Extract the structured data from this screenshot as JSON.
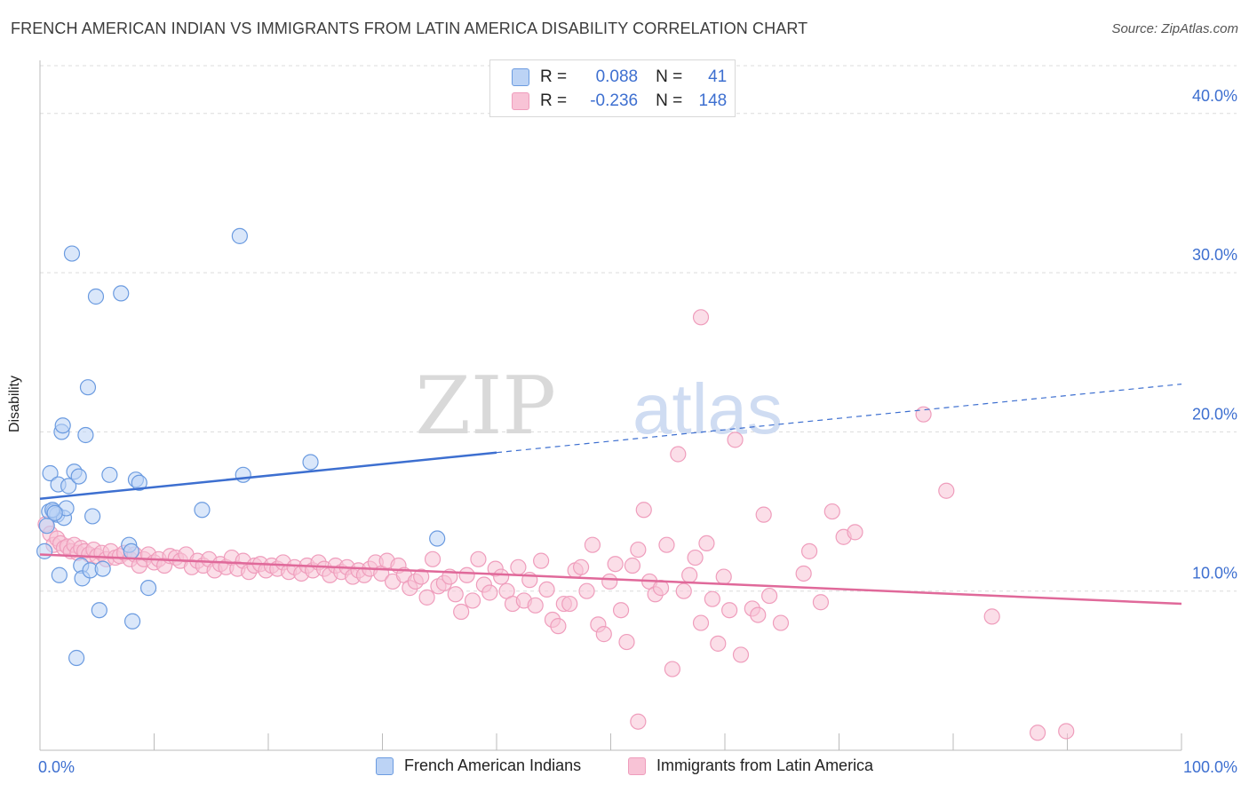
{
  "title": "FRENCH AMERICAN INDIAN VS IMMIGRANTS FROM LATIN AMERICA DISABILITY CORRELATION CHART",
  "source": "Source: ZipAtlas.com",
  "watermark": {
    "zip": "ZIP",
    "atlas": "atlas"
  },
  "legend": {
    "r_label": "R =",
    "n_label": "N =",
    "series1": {
      "r": "0.088",
      "n": "41"
    },
    "series2": {
      "r": "-0.236",
      "n": "148"
    }
  },
  "colors": {
    "blue": "#3d6fd0",
    "blue_fill": "#bcd3f5",
    "blue_stroke": "#6b9be0",
    "pink": "#e0699a",
    "pink_fill": "#f8c3d6",
    "pink_stroke": "#ef9dbc",
    "grid": "#dcdcdc",
    "axis": "#bbbbbb"
  },
  "chart_data": {
    "type": "scatter",
    "xlabel": "",
    "ylabel": "Disability",
    "xlim": [
      0,
      100
    ],
    "ylim": [
      0,
      43
    ],
    "x_tick_labels": [
      "0.0%",
      "100.0%"
    ],
    "y_ticks": [
      10,
      20,
      30,
      40
    ],
    "y_tick_labels": [
      "10.0%",
      "20.0%",
      "30.0%",
      "40.0%"
    ],
    "series": [
      {
        "name": "French American Indians",
        "color": "#3d6fd0",
        "trend": {
          "x0": 0,
          "y0": 15.8,
          "x1": 40,
          "y1": 18.7,
          "dash_x1": 100,
          "dash_y1": 23.0
        },
        "points": [
          [
            0.8,
            15.0
          ],
          [
            0.9,
            17.4
          ],
          [
            1.2,
            15.0
          ],
          [
            1.5,
            14.8
          ],
          [
            1.6,
            16.7
          ],
          [
            1.7,
            11.0
          ],
          [
            1.9,
            20.0
          ],
          [
            2.0,
            20.4
          ],
          [
            2.1,
            14.6
          ],
          [
            2.3,
            15.2
          ],
          [
            2.5,
            16.6
          ],
          [
            2.8,
            31.2
          ],
          [
            3.0,
            17.5
          ],
          [
            3.2,
            5.8
          ],
          [
            3.4,
            17.2
          ],
          [
            3.6,
            11.6
          ],
          [
            3.7,
            10.8
          ],
          [
            4.0,
            19.8
          ],
          [
            4.2,
            22.8
          ],
          [
            4.4,
            11.3
          ],
          [
            4.6,
            14.7
          ],
          [
            4.9,
            28.5
          ],
          [
            5.2,
            8.8
          ],
          [
            5.5,
            11.4
          ],
          [
            6.1,
            17.3
          ],
          [
            7.1,
            28.7
          ],
          [
            7.8,
            12.9
          ],
          [
            8.0,
            12.5
          ],
          [
            8.1,
            8.1
          ],
          [
            8.4,
            17.0
          ],
          [
            8.7,
            16.8
          ],
          [
            9.5,
            10.2
          ],
          [
            14.2,
            15.1
          ],
          [
            17.5,
            32.3
          ],
          [
            17.8,
            17.3
          ],
          [
            23.7,
            18.1
          ],
          [
            34.8,
            13.3
          ],
          [
            0.6,
            14.1
          ],
          [
            1.1,
            15.1
          ],
          [
            1.3,
            14.9
          ],
          [
            0.4,
            12.5
          ]
        ]
      },
      {
        "name": "Immigrants from Latin America",
        "color": "#e0699a",
        "trend": {
          "x0": 0,
          "y0": 12.3,
          "x1": 100,
          "y1": 9.2
        },
        "points": [
          [
            0.5,
            14.2
          ],
          [
            0.9,
            13.6
          ],
          [
            1.2,
            12.9
          ],
          [
            1.5,
            13.3
          ],
          [
            1.8,
            13.0
          ],
          [
            2.1,
            12.7
          ],
          [
            2.4,
            12.8
          ],
          [
            2.7,
            12.5
          ],
          [
            3.0,
            12.9
          ],
          [
            3.3,
            12.4
          ],
          [
            3.6,
            12.7
          ],
          [
            3.9,
            12.5
          ],
          [
            4.3,
            12.3
          ],
          [
            4.7,
            12.6
          ],
          [
            5.0,
            12.2
          ],
          [
            5.4,
            12.4
          ],
          [
            5.8,
            12.0
          ],
          [
            6.2,
            12.5
          ],
          [
            6.6,
            12.1
          ],
          [
            7.0,
            12.2
          ],
          [
            7.4,
            12.4
          ],
          [
            7.9,
            12.0
          ],
          [
            8.3,
            12.3
          ],
          [
            8.7,
            11.6
          ],
          [
            9.1,
            12.0
          ],
          [
            9.5,
            12.3
          ],
          [
            10.0,
            11.8
          ],
          [
            10.4,
            12.0
          ],
          [
            10.9,
            11.6
          ],
          [
            11.4,
            12.2
          ],
          [
            11.9,
            12.1
          ],
          [
            12.3,
            11.9
          ],
          [
            12.8,
            12.3
          ],
          [
            13.3,
            11.5
          ],
          [
            13.8,
            11.9
          ],
          [
            14.3,
            11.6
          ],
          [
            14.8,
            12.0
          ],
          [
            15.3,
            11.3
          ],
          [
            15.8,
            11.7
          ],
          [
            16.3,
            11.5
          ],
          [
            16.8,
            12.1
          ],
          [
            17.3,
            11.4
          ],
          [
            17.8,
            11.9
          ],
          [
            18.3,
            11.2
          ],
          [
            18.8,
            11.6
          ],
          [
            19.3,
            11.7
          ],
          [
            19.8,
            11.3
          ],
          [
            20.3,
            11.6
          ],
          [
            20.8,
            11.4
          ],
          [
            21.3,
            11.8
          ],
          [
            21.8,
            11.2
          ],
          [
            22.3,
            11.5
          ],
          [
            22.9,
            11.1
          ],
          [
            23.4,
            11.6
          ],
          [
            23.9,
            11.3
          ],
          [
            24.4,
            11.8
          ],
          [
            24.9,
            11.4
          ],
          [
            25.4,
            11.0
          ],
          [
            25.9,
            11.6
          ],
          [
            26.4,
            11.2
          ],
          [
            26.9,
            11.5
          ],
          [
            27.4,
            10.9
          ],
          [
            27.9,
            11.3
          ],
          [
            28.4,
            11.0
          ],
          [
            28.9,
            11.4
          ],
          [
            29.4,
            11.8
          ],
          [
            29.9,
            11.1
          ],
          [
            30.4,
            11.9
          ],
          [
            30.9,
            10.6
          ],
          [
            31.4,
            11.6
          ],
          [
            31.9,
            11.0
          ],
          [
            32.4,
            10.2
          ],
          [
            32.9,
            10.6
          ],
          [
            33.4,
            10.9
          ],
          [
            33.9,
            9.6
          ],
          [
            34.4,
            12.0
          ],
          [
            34.9,
            10.3
          ],
          [
            35.4,
            10.5
          ],
          [
            35.9,
            10.9
          ],
          [
            36.4,
            9.8
          ],
          [
            36.9,
            8.7
          ],
          [
            37.4,
            11.0
          ],
          [
            37.9,
            9.4
          ],
          [
            38.4,
            12.0
          ],
          [
            38.9,
            10.4
          ],
          [
            39.4,
            9.9
          ],
          [
            39.9,
            11.4
          ],
          [
            40.4,
            10.9
          ],
          [
            40.9,
            10.0
          ],
          [
            41.4,
            9.2
          ],
          [
            41.9,
            11.5
          ],
          [
            42.4,
            9.4
          ],
          [
            42.9,
            10.7
          ],
          [
            43.4,
            9.1
          ],
          [
            43.9,
            11.9
          ],
          [
            44.4,
            10.1
          ],
          [
            44.9,
            8.2
          ],
          [
            45.4,
            7.8
          ],
          [
            45.9,
            9.2
          ],
          [
            46.4,
            9.2
          ],
          [
            46.9,
            11.3
          ],
          [
            47.4,
            11.5
          ],
          [
            47.9,
            10.0
          ],
          [
            48.4,
            12.9
          ],
          [
            48.9,
            7.9
          ],
          [
            49.4,
            7.3
          ],
          [
            49.9,
            10.6
          ],
          [
            50.4,
            11.7
          ],
          [
            50.9,
            8.8
          ],
          [
            51.4,
            6.8
          ],
          [
            51.9,
            11.6
          ],
          [
            52.4,
            12.6
          ],
          [
            52.9,
            15.1
          ],
          [
            53.4,
            10.6
          ],
          [
            53.9,
            9.8
          ],
          [
            54.4,
            10.2
          ],
          [
            54.9,
            12.9
          ],
          [
            55.4,
            5.1
          ],
          [
            55.9,
            18.6
          ],
          [
            56.4,
            10.0
          ],
          [
            56.9,
            11.0
          ],
          [
            57.4,
            12.1
          ],
          [
            57.9,
            8.0
          ],
          [
            58.4,
            13.0
          ],
          [
            58.9,
            9.5
          ],
          [
            59.4,
            6.7
          ],
          [
            59.9,
            10.9
          ],
          [
            60.4,
            8.8
          ],
          [
            60.9,
            19.5
          ],
          [
            61.4,
            6.0
          ],
          [
            62.4,
            8.9
          ],
          [
            62.9,
            8.5
          ],
          [
            63.4,
            14.8
          ],
          [
            63.9,
            9.7
          ],
          [
            64.9,
            8.0
          ],
          [
            66.9,
            11.1
          ],
          [
            67.4,
            12.5
          ],
          [
            68.4,
            9.3
          ],
          [
            69.4,
            15.0
          ],
          [
            70.4,
            13.4
          ],
          [
            71.4,
            13.7
          ],
          [
            77.4,
            21.1
          ],
          [
            79.4,
            16.3
          ],
          [
            83.4,
            8.4
          ],
          [
            89.9,
            1.2
          ],
          [
            87.4,
            1.1
          ],
          [
            57.9,
            27.2
          ],
          [
            52.4,
            1.8
          ]
        ]
      }
    ]
  },
  "bottom_legend": {
    "series1_label": "French American Indians",
    "series2_label": "Immigrants from Latin America"
  }
}
